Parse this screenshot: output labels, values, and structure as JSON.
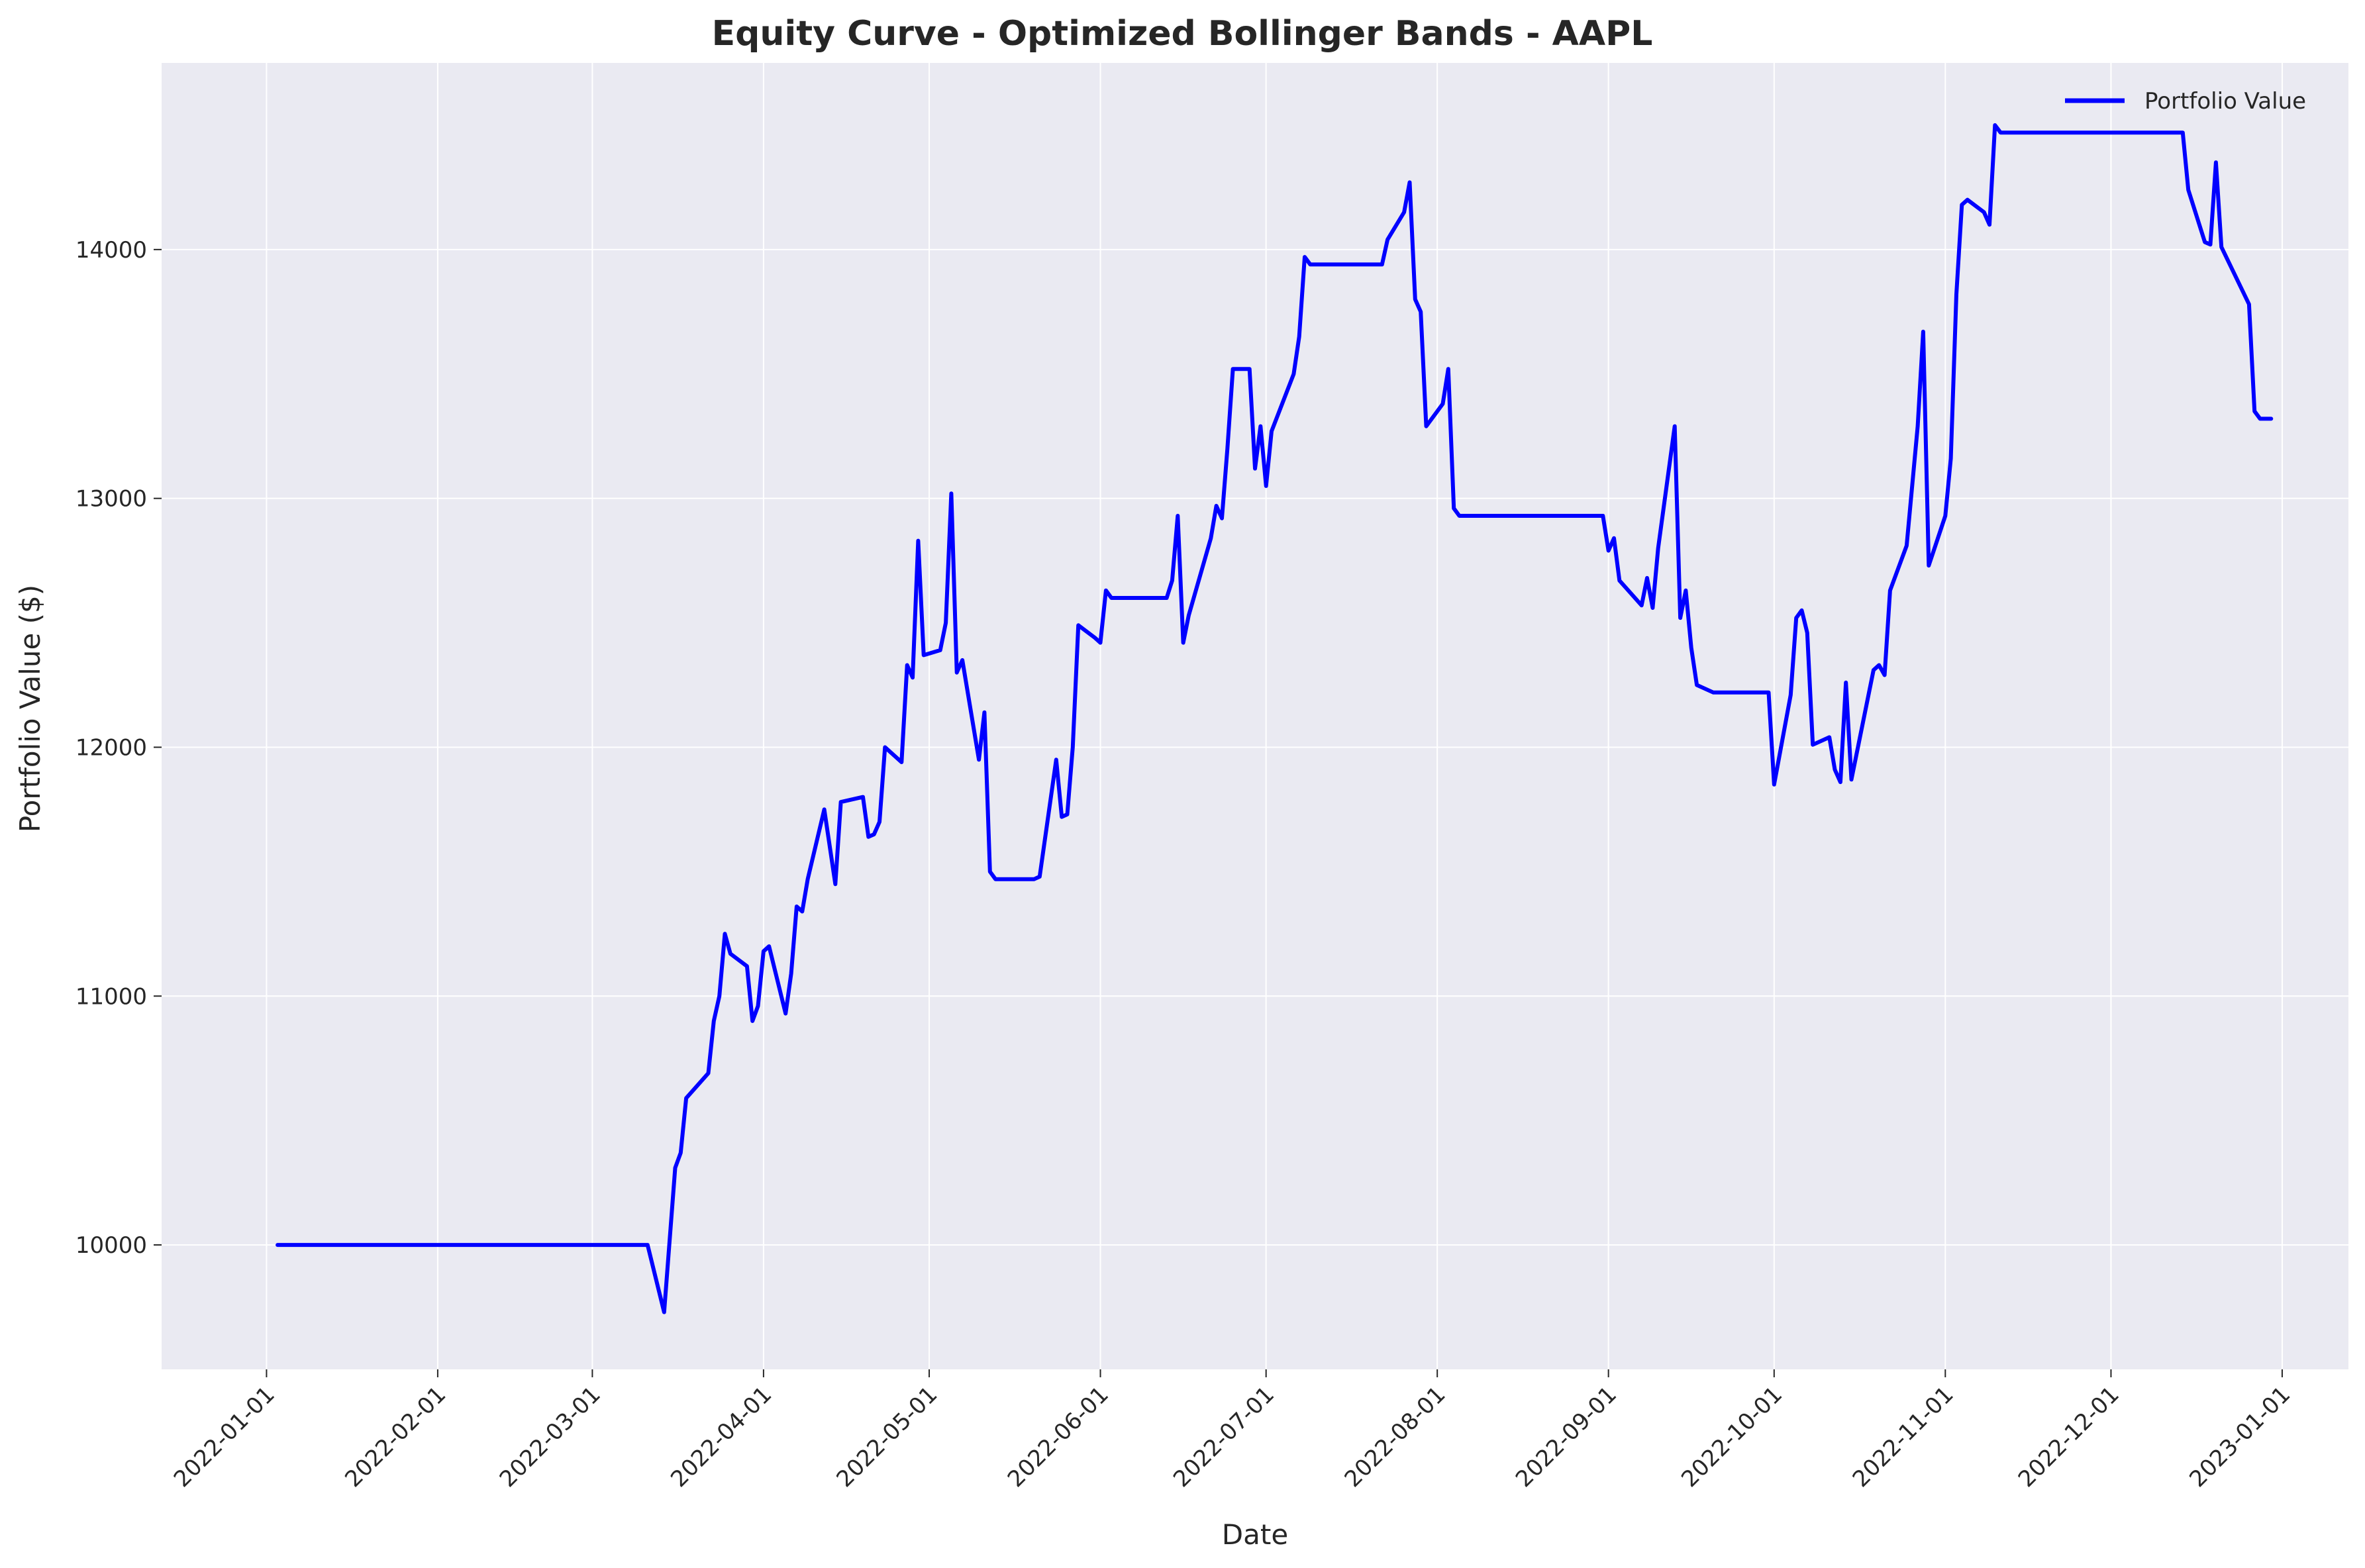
{
  "chart_data": {
    "type": "line",
    "title": "Equity Curve - Optimized Bollinger Bands - AAPL",
    "xlabel": "Date",
    "ylabel": "Portfolio Value ($)",
    "xlim": [
      "2021-12-13",
      "2023-01-13"
    ],
    "ylim": [
      9500,
      14750
    ],
    "x_ticks": [
      "2022-01-01",
      "2022-02-01",
      "2022-03-01",
      "2022-04-01",
      "2022-05-01",
      "2022-06-01",
      "2022-07-01",
      "2022-08-01",
      "2022-09-01",
      "2022-10-01",
      "2022-11-01",
      "2022-12-01",
      "2023-01-01"
    ],
    "y_ticks": [
      10000,
      11000,
      12000,
      13000,
      14000
    ],
    "grid": true,
    "legend": "upper right",
    "colors": {
      "line": "#0000ff",
      "plot_background": "#eaeaf2",
      "grid": "#ffffff"
    },
    "series": [
      {
        "name": "Portfolio Value",
        "points": [
          [
            "2022-01-03",
            10000
          ],
          [
            "2022-03-11",
            10000
          ],
          [
            "2022-03-14",
            9730
          ],
          [
            "2022-03-16",
            10310
          ],
          [
            "2022-03-17",
            10370
          ],
          [
            "2022-03-18",
            10590
          ],
          [
            "2022-03-22",
            10690
          ],
          [
            "2022-03-23",
            10900
          ],
          [
            "2022-03-24",
            11000
          ],
          [
            "2022-03-25",
            11250
          ],
          [
            "2022-03-26",
            11170
          ],
          [
            "2022-03-29",
            11120
          ],
          [
            "2022-03-30",
            10900
          ],
          [
            "2022-03-31",
            10960
          ],
          [
            "2022-04-01",
            11180
          ],
          [
            "2022-04-02",
            11200
          ],
          [
            "2022-04-05",
            10930
          ],
          [
            "2022-04-06",
            11090
          ],
          [
            "2022-04-07",
            11360
          ],
          [
            "2022-04-08",
            11340
          ],
          [
            "2022-04-09",
            11470
          ],
          [
            "2022-04-12",
            11750
          ],
          [
            "2022-04-14",
            11450
          ],
          [
            "2022-04-15",
            11780
          ],
          [
            "2022-04-19",
            11800
          ],
          [
            "2022-04-20",
            11640
          ],
          [
            "2022-04-21",
            11650
          ],
          [
            "2022-04-22",
            11700
          ],
          [
            "2022-04-23",
            12000
          ],
          [
            "2022-04-26",
            11940
          ],
          [
            "2022-04-27",
            12330
          ],
          [
            "2022-04-28",
            12280
          ],
          [
            "2022-04-29",
            12830
          ],
          [
            "2022-04-30",
            12370
          ],
          [
            "2022-05-03",
            12390
          ],
          [
            "2022-05-04",
            12500
          ],
          [
            "2022-05-05",
            13020
          ],
          [
            "2022-05-06",
            12300
          ],
          [
            "2022-05-07",
            12350
          ],
          [
            "2022-05-10",
            11950
          ],
          [
            "2022-05-11",
            12140
          ],
          [
            "2022-05-12",
            11500
          ],
          [
            "2022-05-13",
            11470
          ],
          [
            "2022-05-20",
            11470
          ],
          [
            "2022-05-21",
            11480
          ],
          [
            "2022-05-24",
            11950
          ],
          [
            "2022-05-25",
            11720
          ],
          [
            "2022-05-26",
            11730
          ],
          [
            "2022-05-27",
            12000
          ],
          [
            "2022-05-28",
            12490
          ],
          [
            "2022-05-31",
            12440
          ],
          [
            "2022-06-01",
            12420
          ],
          [
            "2022-06-02",
            12630
          ],
          [
            "2022-06-03",
            12600
          ],
          [
            "2022-06-13",
            12600
          ],
          [
            "2022-06-14",
            12670
          ],
          [
            "2022-06-15",
            12930
          ],
          [
            "2022-06-16",
            12420
          ],
          [
            "2022-06-17",
            12530
          ],
          [
            "2022-06-21",
            12840
          ],
          [
            "2022-06-22",
            12970
          ],
          [
            "2022-06-23",
            12920
          ],
          [
            "2022-06-24",
            13200
          ],
          [
            "2022-06-25",
            13520
          ],
          [
            "2022-06-28",
            13520
          ],
          [
            "2022-06-29",
            13120
          ],
          [
            "2022-06-30",
            13290
          ],
          [
            "2022-07-01",
            13050
          ],
          [
            "2022-07-02",
            13270
          ],
          [
            "2022-07-06",
            13500
          ],
          [
            "2022-07-07",
            13650
          ],
          [
            "2022-07-08",
            13970
          ],
          [
            "2022-07-09",
            13940
          ],
          [
            "2022-07-22",
            13940
          ],
          [
            "2022-07-23",
            14040
          ],
          [
            "2022-07-26",
            14150
          ],
          [
            "2022-07-27",
            14270
          ],
          [
            "2022-07-28",
            13800
          ],
          [
            "2022-07-29",
            13750
          ],
          [
            "2022-07-30",
            13290
          ],
          [
            "2022-08-01",
            13350
          ],
          [
            "2022-08-02",
            13380
          ],
          [
            "2022-08-03",
            13520
          ],
          [
            "2022-08-04",
            12960
          ],
          [
            "2022-08-05",
            12930
          ],
          [
            "2022-08-31",
            12930
          ],
          [
            "2022-09-01",
            12790
          ],
          [
            "2022-09-02",
            12840
          ],
          [
            "2022-09-03",
            12670
          ],
          [
            "2022-09-07",
            12570
          ],
          [
            "2022-09-08",
            12680
          ],
          [
            "2022-09-09",
            12560
          ],
          [
            "2022-09-10",
            12800
          ],
          [
            "2022-09-13",
            13290
          ],
          [
            "2022-09-14",
            12520
          ],
          [
            "2022-09-15",
            12630
          ],
          [
            "2022-09-16",
            12400
          ],
          [
            "2022-09-17",
            12250
          ],
          [
            "2022-09-20",
            12220
          ],
          [
            "2022-09-30",
            12220
          ],
          [
            "2022-10-01",
            11850
          ],
          [
            "2022-10-04",
            12210
          ],
          [
            "2022-10-05",
            12520
          ],
          [
            "2022-10-06",
            12550
          ],
          [
            "2022-10-07",
            12460
          ],
          [
            "2022-10-08",
            12010
          ],
          [
            "2022-10-11",
            12040
          ],
          [
            "2022-10-12",
            11910
          ],
          [
            "2022-10-13",
            11860
          ],
          [
            "2022-10-14",
            12260
          ],
          [
            "2022-10-15",
            11870
          ],
          [
            "2022-10-19",
            12310
          ],
          [
            "2022-10-20",
            12330
          ],
          [
            "2022-10-21",
            12290
          ],
          [
            "2022-10-22",
            12630
          ],
          [
            "2022-10-25",
            12810
          ],
          [
            "2022-10-27",
            13290
          ],
          [
            "2022-10-28",
            13670
          ],
          [
            "2022-10-29",
            12730
          ],
          [
            "2022-11-01",
            12930
          ],
          [
            "2022-11-02",
            13160
          ],
          [
            "2022-11-03",
            13820
          ],
          [
            "2022-11-04",
            14180
          ],
          [
            "2022-11-05",
            14200
          ],
          [
            "2022-11-08",
            14150
          ],
          [
            "2022-11-09",
            14100
          ],
          [
            "2022-11-10",
            14500
          ],
          [
            "2022-11-11",
            14470
          ],
          [
            "2022-12-14",
            14470
          ],
          [
            "2022-12-15",
            14240
          ],
          [
            "2022-12-18",
            14030
          ],
          [
            "2022-12-19",
            14020
          ],
          [
            "2022-12-20",
            14350
          ],
          [
            "2022-12-21",
            14010
          ],
          [
            "2022-12-26",
            13780
          ],
          [
            "2022-12-27",
            13350
          ],
          [
            "2022-12-28",
            13320
          ],
          [
            "2022-12-30",
            13320
          ]
        ]
      }
    ]
  }
}
